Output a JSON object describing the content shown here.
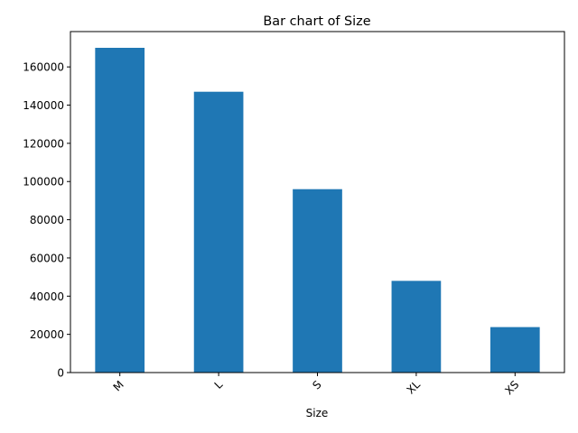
{
  "chart_data": {
    "type": "bar",
    "title": "Bar chart of Size",
    "xlabel": "Size",
    "ylabel": "",
    "categories": [
      "M",
      "L",
      "S",
      "XL",
      "XS"
    ],
    "values": [
      170000,
      147000,
      96000,
      48000,
      23800
    ],
    "ylim": [
      0,
      178500
    ],
    "yticks": [
      0,
      20000,
      40000,
      60000,
      80000,
      100000,
      120000,
      140000,
      160000
    ],
    "bar_color": "#1f77b4",
    "grid": false,
    "legend": "none"
  }
}
